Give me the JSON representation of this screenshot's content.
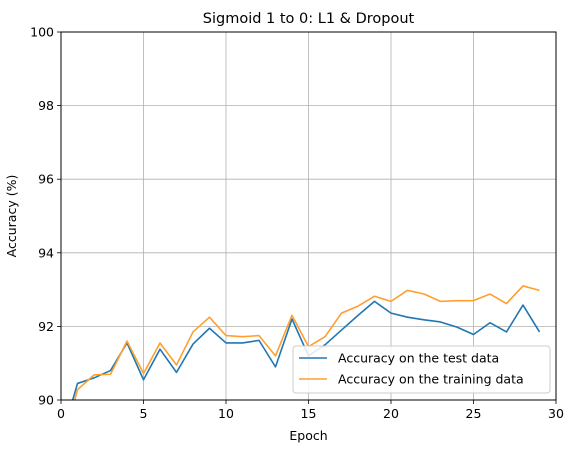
{
  "chart_data": {
    "type": "line",
    "title": "Sigmoid 1 to 0:  L1 & Dropout",
    "xlabel": "Epoch",
    "ylabel": "Accuracy (%)",
    "xlim": [
      0,
      30
    ],
    "ylim": [
      90,
      100
    ],
    "xticks": [
      0,
      5,
      10,
      15,
      20,
      25,
      30
    ],
    "yticks": [
      90,
      92,
      94,
      96,
      98,
      100
    ],
    "grid": true,
    "legend_position": "lower-right",
    "x": [
      0,
      1,
      2,
      3,
      4,
      5,
      6,
      7,
      8,
      9,
      10,
      11,
      12,
      13,
      14,
      15,
      16,
      17,
      18,
      19,
      20,
      21,
      22,
      23,
      24,
      25,
      26,
      27,
      28,
      29
    ],
    "series": [
      {
        "name": "Accuracy on the test data",
        "color": "#1f77b4",
        "values": [
          88.9,
          90.45,
          90.6,
          90.8,
          91.55,
          90.55,
          91.38,
          90.75,
          91.52,
          91.95,
          91.55,
          91.55,
          91.62,
          90.9,
          92.2,
          91.2,
          91.5,
          91.9,
          92.3,
          92.68,
          92.36,
          92.25,
          92.18,
          92.12,
          91.98,
          91.78,
          92.1,
          91.85,
          92.58,
          91.85
        ]
      },
      {
        "name": "Accuracy on the training data",
        "color": "#ff9f2e",
        "values": [
          88.6,
          90.28,
          90.68,
          90.7,
          91.6,
          90.72,
          91.55,
          90.95,
          91.85,
          92.25,
          91.75,
          91.72,
          91.75,
          91.2,
          92.3,
          91.45,
          91.72,
          92.36,
          92.55,
          92.82,
          92.68,
          92.98,
          92.88,
          92.68,
          92.7,
          92.7,
          92.88,
          92.62,
          93.1,
          92.98
        ]
      }
    ]
  }
}
